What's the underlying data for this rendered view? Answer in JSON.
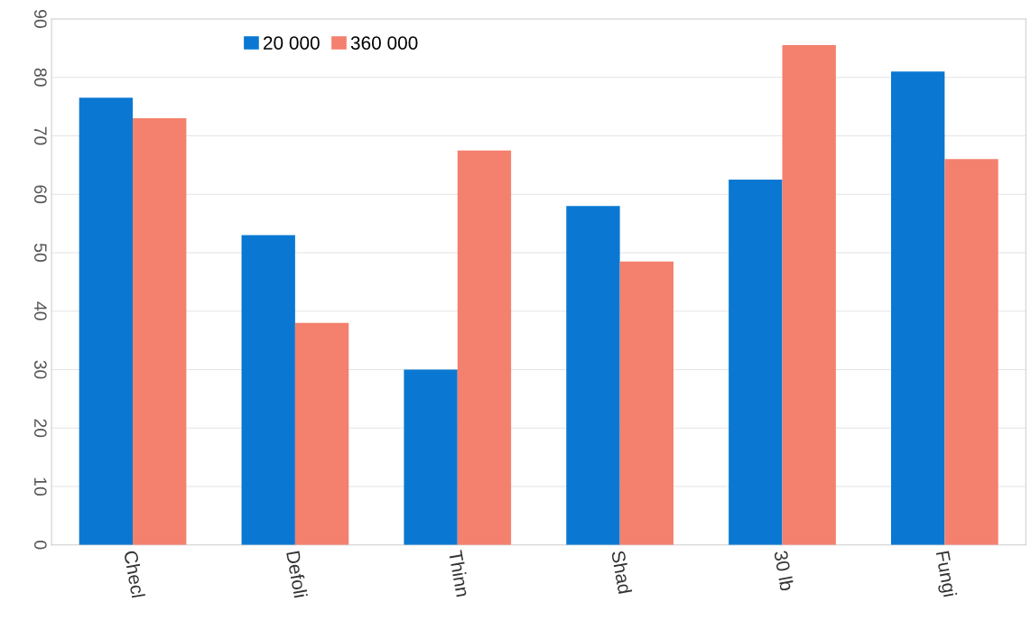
{
  "chart_data": {
    "type": "bar",
    "categories": [
      "Checl",
      "Defoli",
      "Thinn",
      "Shad",
      "30 lb",
      "Fungi"
    ],
    "series": [
      {
        "name": "20 000",
        "color": "#0a78d2",
        "values": [
          76.5,
          53,
          30,
          58,
          62.5,
          81
        ]
      },
      {
        "name": "360 000",
        "color": "#f4806e",
        "values": [
          73,
          38,
          67.5,
          48.5,
          85.5,
          66
        ]
      }
    ],
    "ylim": [
      0,
      90
    ],
    "yticks": [
      0,
      10,
      20,
      30,
      40,
      50,
      60,
      70,
      80,
      90
    ],
    "grid": "y",
    "legend": "top left"
  }
}
